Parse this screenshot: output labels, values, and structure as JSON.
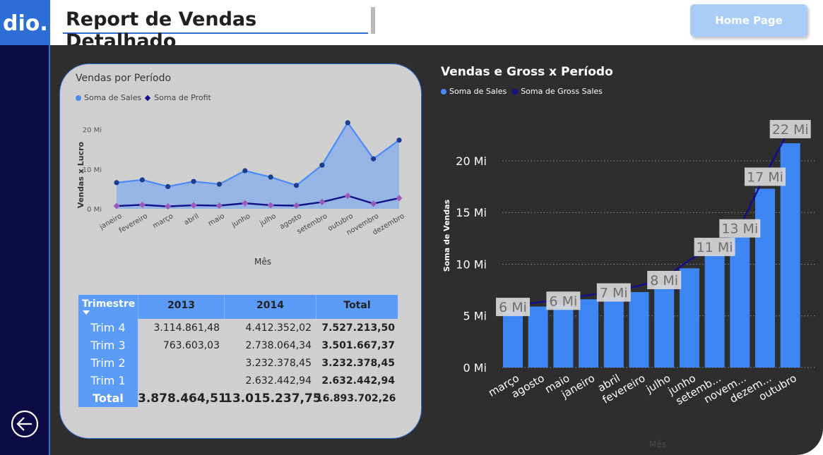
{
  "header": {
    "logo_text": "dio.",
    "title": "Report de Vendas Detalhado",
    "home_label": "Home Page"
  },
  "sidebar": {
    "back_icon": "arrow-left-circle-icon"
  },
  "colors": {
    "accent": "#2c6ed5",
    "sales": "#4a8cf7",
    "profit": "#12108a",
    "sidebar": "#0d0b45",
    "bar": "#3f86f5"
  },
  "left_chart": {
    "title": "Vendas por Período",
    "legend": [
      "Soma de  Sales",
      "Soma de Profit"
    ]
  },
  "table": {
    "headers": [
      "Trimestre",
      "2013",
      "2014",
      "Total"
    ],
    "rows": [
      {
        "label": "Trim 4",
        "y2013": "3.114.861,48",
        "y2014": "4.412.352,02",
        "total": "7.527.213,50"
      },
      {
        "label": "Trim 3",
        "y2013": "763.603,03",
        "y2014": "2.738.064,34",
        "total": "3.501.667,37"
      },
      {
        "label": "Trim 2",
        "y2013": "",
        "y2014": "3.232.378,45",
        "total": "3.232.378,45"
      },
      {
        "label": "Trim 1",
        "y2013": "",
        "y2014": "2.632.442,94",
        "total": "2.632.442,94"
      }
    ],
    "total": {
      "label": "Total",
      "y2013": "3.878.464,51",
      "y2014": "13.015.237,75",
      "total": "16.893.702,26"
    }
  },
  "right_chart": {
    "title": "Vendas e Gross x Período",
    "legend": [
      "Soma de  Sales",
      "Soma de Gross Sales"
    ]
  },
  "chart_data": [
    {
      "type": "area",
      "title": "Vendas por Período",
      "xlabel": "Mês",
      "ylabel": "Vendas x Lucro",
      "categories": [
        "janeiro",
        "fevereiro",
        "março",
        "abril",
        "maio",
        "junho",
        "julho",
        "agosto",
        "setembro",
        "outubro",
        "novembro",
        "dezembro"
      ],
      "yticks": [
        "0 Mi",
        "10 Mi",
        "20 Mi"
      ],
      "ylim": [
        0,
        24
      ],
      "series": [
        {
          "name": "Soma de  Sales",
          "values": [
            6.6,
            7.3,
            5.6,
            6.9,
            6.2,
            9.6,
            8.0,
            5.9,
            11.0,
            21.7,
            12.6,
            17.3
          ]
        },
        {
          "name": "Soma de Profit",
          "values": [
            0.7,
            1.0,
            0.6,
            0.9,
            0.8,
            1.4,
            0.9,
            0.8,
            1.7,
            3.3,
            1.3,
            2.7
          ]
        }
      ],
      "legend_position": "top-left",
      "grid": false
    },
    {
      "type": "bar",
      "title": "Vendas e Gross x Período",
      "xlabel": "Mês",
      "ylabel": "Soma de Vendas",
      "categories": [
        "março",
        "agosto",
        "maio",
        "janeiro",
        "abril",
        "fevereiro",
        "julho",
        "junho",
        "setemb...",
        "novem...",
        "dezem...",
        "outubro"
      ],
      "yticks": [
        "0 Mi",
        "5 Mi",
        "10 Mi",
        "15 Mi",
        "20 Mi"
      ],
      "ylim": [
        0,
        23
      ],
      "series": [
        {
          "name": "Soma de  Sales",
          "values": [
            5.6,
            5.9,
            6.2,
            6.6,
            6.9,
            7.3,
            8.0,
            9.6,
            11.0,
            12.6,
            17.3,
            21.7
          ]
        },
        {
          "name": "Soma de Gross Sales",
          "values": [
            6.0,
            6.3,
            6.6,
            7.0,
            7.4,
            7.9,
            8.6,
            10.4,
            11.8,
            13.6,
            18.6,
            23.2
          ]
        }
      ],
      "data_labels": [
        "6 Mi",
        "6 Mi",
        "7 Mi",
        "8 Mi",
        "11 Mi",
        "13 Mi",
        "17 Mi",
        "22 Mi"
      ],
      "data_label_index": [
        0,
        2,
        4,
        6,
        8,
        9,
        10,
        11
      ],
      "legend_position": "top-left",
      "grid": true
    }
  ]
}
